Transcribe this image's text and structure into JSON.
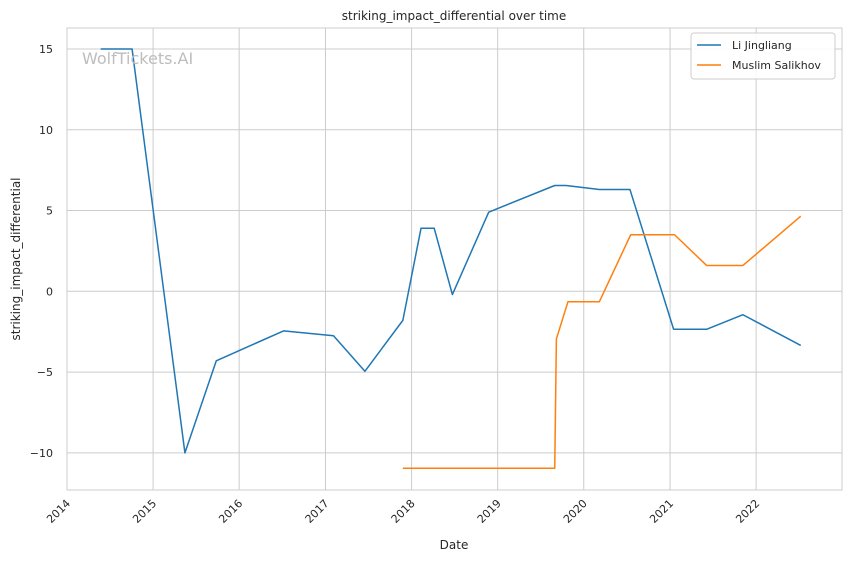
{
  "chart_data": {
    "type": "line",
    "title": "striking_impact_differential over time",
    "xlabel": "Date",
    "ylabel": "striking_impact_differential",
    "watermark": "WolfTickets.AI",
    "xlim": [
      "2014-01-01",
      "2022-12-31"
    ],
    "ylim": [
      -12.3,
      16.3
    ],
    "x_ticks": [
      "2014",
      "2015",
      "2016",
      "2017",
      "2018",
      "2019",
      "2020",
      "2021",
      "2022"
    ],
    "y_ticks": [
      -10,
      -5,
      0,
      5,
      10,
      15
    ],
    "grid": true,
    "legend_position": "top-right",
    "series": [
      {
        "name": "Li Jingliang",
        "color": "#1f77b4",
        "points": [
          [
            "2014-05-24",
            15.0
          ],
          [
            "2014-10-04",
            15.0
          ],
          [
            "2015-05-16",
            -10.0
          ],
          [
            "2015-09-26",
            -4.3
          ],
          [
            "2016-07-07",
            -2.45
          ],
          [
            "2017-02-04",
            -2.75
          ],
          [
            "2017-06-17",
            -4.95
          ],
          [
            "2017-11-25",
            -1.8
          ],
          [
            "2018-02-10",
            3.9
          ],
          [
            "2018-04-07",
            3.9
          ],
          [
            "2018-06-23",
            -0.2
          ],
          [
            "2018-11-24",
            4.9
          ],
          [
            "2019-08-31",
            6.55
          ],
          [
            "2019-10-18",
            6.55
          ],
          [
            "2020-03-07",
            6.3
          ],
          [
            "2020-07-15",
            6.3
          ],
          [
            "2021-01-16",
            -2.35
          ],
          [
            "2021-06-05",
            -2.35
          ],
          [
            "2021-11-06",
            -1.45
          ],
          [
            "2022-07-09",
            -3.35
          ]
        ]
      },
      {
        "name": "Muslim Salikhov",
        "color": "#ff7f0e",
        "points": [
          [
            "2017-11-25",
            -10.95
          ],
          [
            "2019-08-31",
            -10.95
          ],
          [
            "2019-09-07",
            -2.95
          ],
          [
            "2019-10-26",
            -0.65
          ],
          [
            "2020-03-07",
            -0.65
          ],
          [
            "2020-07-18",
            3.5
          ],
          [
            "2021-01-20",
            3.5
          ],
          [
            "2021-06-05",
            1.6
          ],
          [
            "2021-11-06",
            1.6
          ],
          [
            "2022-07-09",
            4.65
          ]
        ]
      }
    ]
  }
}
